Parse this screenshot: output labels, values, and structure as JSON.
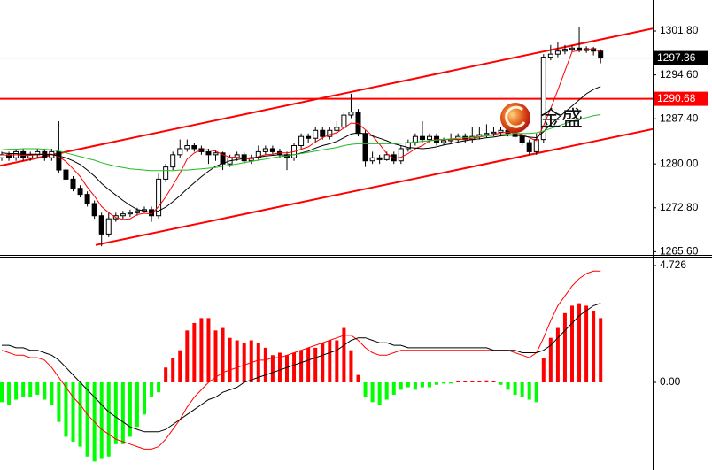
{
  "chart_data": {
    "type": "candlestick",
    "open": [
      1281,
      1281.5,
      1281,
      1282,
      1281,
      1281.5,
      1282,
      1281,
      1282,
      1279,
      1277.5,
      1276,
      1275,
      1273.5,
      1271.5,
      1268.5,
      1271,
      1271.5,
      1271.8,
      1272,
      1272.3,
      1272.5,
      1271.5,
      1277.5,
      1279.5,
      1281.5,
      1282.5,
      1283,
      1282.5,
      1282,
      1281.5,
      1281.8,
      1280,
      1281,
      1281.5,
      1280.5,
      1281,
      1282,
      1282.5,
      1282,
      1281.5,
      1281,
      1283,
      1284.5,
      1284.2,
      1285.5,
      1284.5,
      1285.5,
      1286,
      1288,
      1288.5,
      1285,
      1280.5,
      1281,
      1280.7,
      1281.5,
      1280.5,
      1282.5,
      1283.5,
      1284.5,
      1284,
      1284.5,
      1283.5,
      1283.8,
      1284,
      1284.5,
      1284,
      1284.5,
      1284.8,
      1285,
      1285.2,
      1285.5,
      1285,
      1284.5,
      1283.5,
      1282,
      1284,
      1297.5,
      1298,
      1298.5,
      1298.8,
      1299,
      1298.6,
      1298.9,
      1298.5
    ],
    "high": [
      1282,
      1282,
      1282.5,
      1282.5,
      1282,
      1282.5,
      1282.5,
      1282.5,
      1287,
      1279.5,
      1278,
      1276.5,
      1275.5,
      1274,
      1272,
      1272,
      1272,
      1272.3,
      1272.5,
      1272.8,
      1273,
      1273,
      1278.5,
      1280,
      1282,
      1284,
      1284,
      1283.5,
      1283,
      1282.5,
      1282.3,
      1282,
      1281.5,
      1282,
      1282,
      1281.5,
      1283,
      1283,
      1283,
      1282.5,
      1282,
      1283.5,
      1285,
      1285,
      1286,
      1286,
      1286,
      1287,
      1288.5,
      1291.5,
      1289,
      1285.5,
      1282,
      1281.5,
      1282,
      1282,
      1283,
      1284,
      1285,
      1287,
      1285,
      1285,
      1284.3,
      1285,
      1285,
      1285,
      1286,
      1286,
      1286.5,
      1286,
      1286,
      1286,
      1285.5,
      1285,
      1284,
      1285,
      1298,
      1299.5,
      1300,
      1299.5,
      1299.5,
      1302.5,
      1299.3,
      1299.2,
      1298.8
    ],
    "low": [
      1280.5,
      1280.5,
      1280.5,
      1280.5,
      1280.5,
      1281,
      1280.5,
      1280.5,
      1278.5,
      1277,
      1275.5,
      1274.5,
      1273,
      1271,
      1266.5,
      1268,
      1270.5,
      1271,
      1271.3,
      1271.5,
      1272,
      1270.5,
      1271,
      1277,
      1279,
      1281,
      1282,
      1282,
      1281.5,
      1280,
      1280.5,
      1279,
      1279.5,
      1280.5,
      1280,
      1280,
      1280.5,
      1281.5,
      1281.5,
      1281,
      1279,
      1280.5,
      1282.5,
      1283.5,
      1283.5,
      1284,
      1284,
      1285,
      1285.5,
      1287.5,
      1284.5,
      1279.5,
      1280,
      1280,
      1280.5,
      1280,
      1280,
      1282,
      1283,
      1283.5,
      1283.5,
      1283,
      1283,
      1283.3,
      1283.5,
      1283.5,
      1283.5,
      1284,
      1284.3,
      1284.5,
      1284.5,
      1284.5,
      1284,
      1283,
      1281.5,
      1281.5,
      1283.5,
      1297,
      1297.5,
      1298,
      1298.3,
      1298.3,
      1298.2,
      1297.8,
      1296.5
    ],
    "close": [
      1281.5,
      1281,
      1282,
      1281,
      1281.5,
      1282,
      1281,
      1282,
      1279,
      1277.5,
      1276,
      1275,
      1273.5,
      1271.5,
      1268.5,
      1271,
      1271.5,
      1271.8,
      1272,
      1272.3,
      1272.5,
      1271.5,
      1277.5,
      1279.5,
      1281.5,
      1282.5,
      1283,
      1282.5,
      1282,
      1281.5,
      1281.8,
      1280,
      1281,
      1281.5,
      1280.5,
      1281,
      1282,
      1282.5,
      1282,
      1281.5,
      1281,
      1283,
      1284.5,
      1284.2,
      1285.5,
      1284.5,
      1285.5,
      1286,
      1288,
      1288.5,
      1285,
      1280.5,
      1281,
      1280.7,
      1281.5,
      1280.5,
      1282.5,
      1283.5,
      1284.5,
      1284,
      1284.5,
      1283.5,
      1283.8,
      1284,
      1284.5,
      1284,
      1284.5,
      1284.8,
      1285,
      1285.2,
      1285.5,
      1285,
      1284.5,
      1283.5,
      1282,
      1284,
      1297.5,
      1298,
      1298.5,
      1298.8,
      1299,
      1298.6,
      1298.9,
      1298.5,
      1297.36
    ],
    "up_color": "#ffffff",
    "down_color": "#000000",
    "ylim": [
      1265.22,
      1306.88
    ],
    "yticks": [
      {
        "value": 1301.8,
        "label": "1301.80"
      },
      {
        "value": 1294.6,
        "label": "1294.60"
      },
      {
        "value": 1287.4,
        "label": "1287.40"
      },
      {
        "value": 1280,
        "label": "1280.00"
      },
      {
        "value": 1272.8,
        "label": "1272.80"
      },
      {
        "value": 1265.6,
        "label": "1265.60"
      }
    ],
    "moving_averages": [
      {
        "color": "#ff0000",
        "values": [
          1281.5,
          1281.4,
          1281.5,
          1281.4,
          1281.4,
          1281.5,
          1281.6,
          1281.6,
          1281.2,
          1280.4,
          1279.2,
          1277.9,
          1276.2,
          1274.7,
          1273,
          1272,
          1271.2,
          1270.9,
          1271,
          1271.7,
          1271.9,
          1271.8,
          1273,
          1274.6,
          1276.5,
          1278.5,
          1280.8,
          1281.8,
          1282.3,
          1282.3,
          1282.1,
          1281.5,
          1281.1,
          1281.1,
          1280.9,
          1280.8,
          1281.2,
          1281.5,
          1281.6,
          1281.8,
          1281.8,
          1282,
          1282.4,
          1282.8,
          1283.6,
          1284.3,
          1284.8,
          1285.1,
          1285.9,
          1286.7,
          1286.6,
          1285.6,
          1284.6,
          1283.2,
          1281.7,
          1280.9,
          1281.1,
          1281.7,
          1282.5,
          1283,
          1283.8,
          1284,
          1284,
          1284,
          1284,
          1284,
          1284.2,
          1284.4,
          1284.6,
          1284.8,
          1285.1,
          1285.2,
          1285.1,
          1284.8,
          1284.3,
          1283.8,
          1286.3,
          1289.1,
          1292.1,
          1295.3,
          1298.4,
          1298.6,
          1298.8,
          1298.8,
          1298.4
        ]
      },
      {
        "color": "#000000",
        "values": [
          1281.8,
          1281.7,
          1281.7,
          1281.6,
          1281.6,
          1281.6,
          1281.6,
          1281.5,
          1281.3,
          1281,
          1280.5,
          1279.9,
          1279,
          1278,
          1276.8,
          1275.8,
          1274.9,
          1274,
          1273.2,
          1272.5,
          1272.3,
          1272,
          1272.3,
          1272.9,
          1273.8,
          1274.8,
          1275.9,
          1276.9,
          1277.9,
          1278.8,
          1279.6,
          1280.1,
          1280.5,
          1280.7,
          1280.9,
          1281,
          1281.1,
          1281.3,
          1281.4,
          1281.5,
          1281.4,
          1281.5,
          1281.8,
          1282.1,
          1282.6,
          1283,
          1283.3,
          1283.7,
          1284.3,
          1284.9,
          1285.1,
          1284.9,
          1284.6,
          1284.2,
          1283.8,
          1283.3,
          1283,
          1282.7,
          1282.6,
          1282.5,
          1282.6,
          1282.8,
          1283.1,
          1283.3,
          1283.6,
          1283.8,
          1284,
          1284.1,
          1284.3,
          1284.4,
          1284.6,
          1284.7,
          1284.7,
          1284.6,
          1284.4,
          1284.3,
          1285.3,
          1286.5,
          1287.5,
          1288.5,
          1289.5,
          1290.5,
          1291.5,
          1292.2,
          1292.7
        ]
      },
      {
        "color": "#22bb22",
        "values": [
          1282.3,
          1282.4,
          1282.4,
          1282.5,
          1282.5,
          1282.5,
          1282.4,
          1282.3,
          1282.1,
          1281.8,
          1281.5,
          1281.2,
          1280.9,
          1280.6,
          1280.2,
          1279.9,
          1279.6,
          1279.4,
          1279.2,
          1279.1,
          1279,
          1278.9,
          1278.9,
          1278.9,
          1278.9,
          1279,
          1279,
          1279.1,
          1279.2,
          1279.3,
          1279.4,
          1279.6,
          1279.8,
          1280,
          1280.2,
          1280.4,
          1280.6,
          1280.8,
          1281,
          1281.2,
          1281.3,
          1281.5,
          1281.7,
          1281.9,
          1282.1,
          1282.3,
          1282.5,
          1282.7,
          1283,
          1283.2,
          1283.3,
          1283.3,
          1283.3,
          1283.3,
          1283.3,
          1283.3,
          1283.4,
          1283.5,
          1283.6,
          1283.7,
          1283.8,
          1283.9,
          1284,
          1284.1,
          1284.2,
          1284.3,
          1284.4,
          1284.5,
          1284.6,
          1284.7,
          1284.8,
          1284.9,
          1285,
          1285,
          1285,
          1285.1,
          1285.4,
          1285.8,
          1286.2,
          1286.6,
          1287,
          1287.3,
          1287.6,
          1287.9,
          1288.1
        ]
      }
    ],
    "trendlines": [
      {
        "color": "#ff0000",
        "values": [
          1279.7,
          1302.2
        ]
      },
      {
        "color": "#ff0000",
        "values": [
          1266.7,
          1285.7
        ]
      }
    ],
    "levels": [
      {
        "value": 1297.36,
        "color": "#000000",
        "line_color": "#c0c0c0"
      },
      {
        "value": 1290.68,
        "color": "#ff0000",
        "line_color": "#ff0000"
      }
    ],
    "watermark": "金盛",
    "indicator": {
      "type": "histogram",
      "up_color": "#ff0000",
      "down_color": "#00ff00",
      "values": [
        -0.8,
        -0.9,
        -0.7,
        -0.6,
        -0.6,
        -0.5,
        -0.7,
        -0.9,
        -1.6,
        -2.2,
        -2.4,
        -2.6,
        -3.0,
        -3.2,
        -3.1,
        -3.0,
        -2.5,
        -2.5,
        -2.2,
        -1.8,
        -1.3,
        -0.6,
        -0.4,
        0.6,
        1.0,
        1.3,
        2.1,
        2.4,
        2.6,
        2.6,
        2.1,
        2.2,
        1.8,
        1.7,
        1.6,
        1.7,
        1.6,
        1.4,
        1.1,
        1.2,
        1.1,
        1.2,
        1.3,
        1.4,
        1.4,
        1.6,
        1.7,
        1.7,
        2.2,
        1.3,
        0.3,
        -0.6,
        -0.8,
        -0.9,
        -0.7,
        -0.5,
        -0.3,
        -0.2,
        -0.3,
        -0.2,
        -0.2,
        -0.1,
        -0.05,
        -0.05,
        0.05,
        0.05,
        0.05,
        0.05,
        0.08,
        0.05,
        -0.1,
        -0.3,
        -0.5,
        -0.6,
        -0.7,
        -0.8,
        1.0,
        1.8,
        2.2,
        2.8,
        3.1,
        3.2,
        3.1,
        2.9,
        2.6
      ],
      "lines": [
        {
          "color": "#ff0000",
          "values": [
            1.3,
            1.2,
            1.1,
            1.1,
            1.0,
            1.0,
            0.9,
            0.6,
            0.2,
            -0.2,
            -0.6,
            -0.9,
            -1.3,
            -1.6,
            -1.9,
            -2.1,
            -2.3,
            -2.4,
            -2.5,
            -2.6,
            -2.7,
            -2.7,
            -2.6,
            -2.3,
            -1.9,
            -1.5,
            -1.0,
            -0.6,
            -0.3,
            0.0,
            0.2,
            0.4,
            0.5,
            0.6,
            0.7,
            0.8,
            0.9,
            0.9,
            1.0,
            1.0,
            1.1,
            1.2,
            1.3,
            1.4,
            1.5,
            1.6,
            1.7,
            1.8,
            1.9,
            1.9,
            1.7,
            1.4,
            1.2,
            1.1,
            1.1,
            1.2,
            1.3,
            1.3,
            1.3,
            1.3,
            1.3,
            1.3,
            1.3,
            1.3,
            1.3,
            1.3,
            1.3,
            1.3,
            1.3,
            1.3,
            1.3,
            1.3,
            1.2,
            1.1,
            1.0,
            1.2,
            1.8,
            2.5,
            3.1,
            3.5,
            3.9,
            4.2,
            4.4,
            4.5,
            4.5
          ]
        },
        {
          "color": "#000000",
          "values": [
            1.5,
            1.5,
            1.4,
            1.4,
            1.3,
            1.3,
            1.2,
            1.1,
            0.9,
            0.6,
            0.3,
            0.0,
            -0.3,
            -0.6,
            -0.9,
            -1.2,
            -1.4,
            -1.6,
            -1.8,
            -1.9,
            -2.0,
            -2.0,
            -2.0,
            -1.9,
            -1.7,
            -1.5,
            -1.3,
            -1.1,
            -0.9,
            -0.7,
            -0.6,
            -0.4,
            -0.3,
            -0.2,
            0.0,
            0.1,
            0.2,
            0.3,
            0.4,
            0.5,
            0.6,
            0.7,
            0.8,
            0.9,
            1.0,
            1.1,
            1.2,
            1.3,
            1.5,
            1.7,
            1.8,
            1.8,
            1.7,
            1.6,
            1.6,
            1.5,
            1.5,
            1.4,
            1.4,
            1.4,
            1.4,
            1.4,
            1.4,
            1.4,
            1.4,
            1.4,
            1.4,
            1.4,
            1.4,
            1.3,
            1.3,
            1.3,
            1.3,
            1.2,
            1.2,
            1.2,
            1.3,
            1.5,
            1.8,
            2.1,
            2.4,
            2.7,
            2.9,
            3.1,
            3.2
          ]
        }
      ],
      "ylim": [
        -3.545,
        5.084
      ],
      "yticks": [
        4.726,
        {
          "value": 0,
          "label": "0.00"
        }
      ]
    }
  }
}
